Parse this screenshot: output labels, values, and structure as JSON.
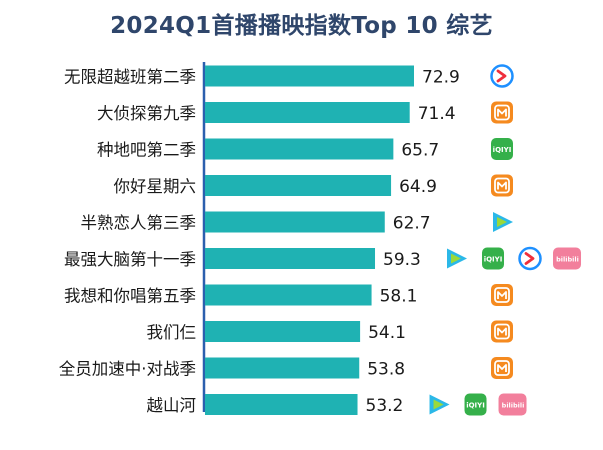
{
  "title": "2024Q1首播播映指数Top 10 综艺",
  "colors": {
    "bar": "#1fb2b3",
    "axis": "#2b5fae",
    "title": "#2f466b",
    "label": "#1a1a1a",
    "tencent": "#2bb8e8",
    "youku": "#1e90ff",
    "mango": "#f58a1f",
    "iqiyi": "#35b04a",
    "bilibili": "#f27f9c"
  },
  "chart_data": {
    "type": "bar",
    "orientation": "horizontal",
    "title": "2024Q1首播播映指数Top 10 综艺",
    "categories": [
      "无限超越班第二季",
      "大侦探第九季",
      "种地吧第二季",
      "你好星期六",
      "半熟恋人第三季",
      "最强大脑第十一季",
      "我想和你唱第五季",
      "我们仨",
      "全员加速中·对战季",
      "越山河"
    ],
    "values": [
      72.9,
      71.4,
      65.7,
      64.9,
      62.7,
      59.3,
      58.1,
      54.1,
      53.8,
      53.2
    ],
    "value_labels": [
      "72.9",
      "71.4",
      "65.7",
      "64.9",
      "62.7",
      "59.3",
      "58.1",
      "54.1",
      "53.8",
      "53.2"
    ],
    "platforms": [
      [
        "youku-icon"
      ],
      [
        "mango-icon"
      ],
      [
        "iqiyi-icon"
      ],
      [
        "mango-icon"
      ],
      [
        "tencent-icon"
      ],
      [
        "tencent-icon",
        "iqiyi-icon",
        "youku-icon",
        "bilibili-icon"
      ],
      [
        "mango-icon"
      ],
      [
        "mango-icon"
      ],
      [
        "mango-icon"
      ],
      [
        "tencent-icon",
        "iqiyi-icon",
        "bilibili-icon"
      ]
    ],
    "platform_text": {
      "iqiyi-icon": "iQIYI",
      "bilibili-icon": "bilibili"
    },
    "xlim": [
      0,
      72.9
    ],
    "grid": false,
    "legend": "none"
  }
}
